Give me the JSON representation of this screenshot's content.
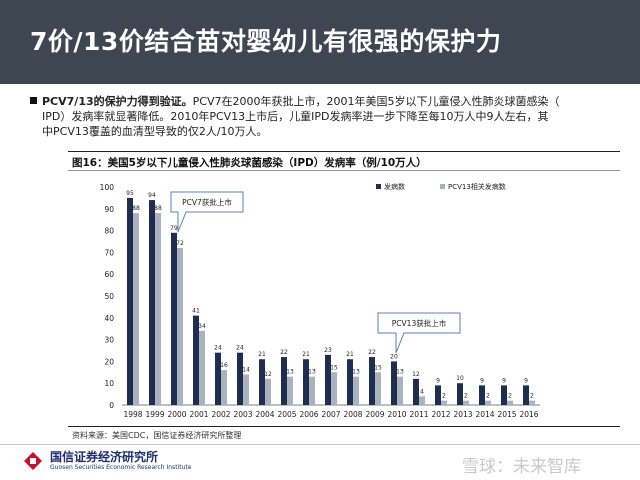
{
  "header": {
    "title": "7价/13价结合苗对婴幼儿有很强的保护力"
  },
  "bullet": {
    "lead": "PCV7/13的保护力得到验证。",
    "line1": "PCV7在2000年获批上市，2001年美国5岁以下儿童侵入性肺炎球菌感染（",
    "line2": "IPD）发病率就显著降低。2010年PCV13上市后，儿童IPD发病率进一步下降至每10万人中9人左右，其",
    "line3": "中PCV13覆盖的血清型导致的仅2人/10万人。"
  },
  "figure": {
    "caption": "图16：美国5岁以下儿童侵入性肺炎球菌感染（IPD）发病率（例/10万人）",
    "source": "资料来源：美国CDC，国信证券经济研究所整理"
  },
  "chart_data": {
    "type": "bar",
    "categories": [
      "1998",
      "1999",
      "2000",
      "2001",
      "2002",
      "2003",
      "2004",
      "2005",
      "2006",
      "2007",
      "2008",
      "2009",
      "2010",
      "2011",
      "2012",
      "2013",
      "2014",
      "2015",
      "2016"
    ],
    "series": [
      {
        "name": "发病数",
        "values": [
          95,
          94,
          79,
          41,
          24,
          24,
          21,
          22,
          21,
          23,
          21,
          22,
          20,
          12,
          9,
          10,
          9,
          9,
          9
        ],
        "color": "#1f2e50"
      },
      {
        "name": "PCV13相关发病数",
        "values": [
          88,
          88,
          72,
          34,
          16,
          14,
          12,
          13,
          13,
          15,
          13,
          15,
          13,
          4,
          2,
          2,
          2,
          2,
          2
        ],
        "color": "#a9b3c0"
      }
    ],
    "ylim": [
      0,
      100
    ],
    "yticks": [
      0,
      10,
      20,
      30,
      40,
      50,
      60,
      70,
      80,
      90,
      100
    ],
    "legend_position": "top-right",
    "annotations": [
      "PCV7获批上市",
      "PCV13获批上市"
    ]
  },
  "footer": {
    "logo_cn": "国信证券经济研究所",
    "logo_en": "Guosen Securities Economic Research Institute",
    "watermark": "雪球：未来智库"
  }
}
